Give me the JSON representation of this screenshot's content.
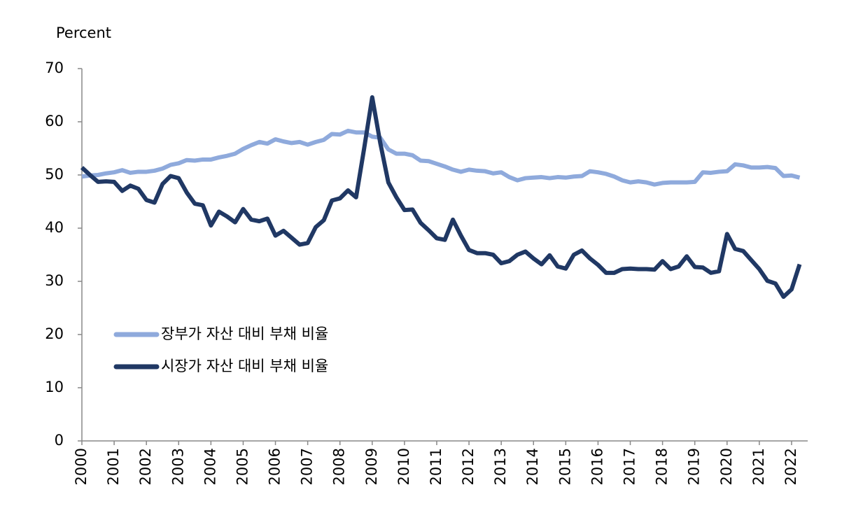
{
  "chart_data": {
    "type": "line",
    "y_axis_label": "Percent",
    "x": [
      2000,
      2000.25,
      2000.5,
      2000.75,
      2001,
      2001.25,
      2001.5,
      2001.75,
      2002,
      2002.25,
      2002.5,
      2002.75,
      2003,
      2003.25,
      2003.5,
      2003.75,
      2004,
      2004.25,
      2004.5,
      2004.75,
      2005,
      2005.25,
      2005.5,
      2005.75,
      2006,
      2006.25,
      2006.5,
      2006.75,
      2007,
      2007.25,
      2007.5,
      2007.75,
      2008,
      2008.25,
      2008.5,
      2008.75,
      2009,
      2009.25,
      2009.5,
      2009.75,
      2010,
      2010.25,
      2010.5,
      2010.75,
      2011,
      2011.25,
      2011.5,
      2011.75,
      2012,
      2012.25,
      2012.5,
      2012.75,
      2013,
      2013.25,
      2013.5,
      2013.75,
      2014,
      2014.25,
      2014.5,
      2014.75,
      2015,
      2015.25,
      2015.5,
      2015.75,
      2016,
      2016.25,
      2016.5,
      2016.75,
      2017,
      2017.25,
      2017.5,
      2017.75,
      2018,
      2018.25,
      2018.5,
      2018.75,
      2019,
      2019.25,
      2019.5,
      2019.75,
      2020,
      2020.25,
      2020.5,
      2020.75,
      2021,
      2021.25,
      2021.5,
      2021.75,
      2022,
      2022.25
    ],
    "series": [
      {
        "name": "장부가 자산 대비 부채 비율",
        "color": "#8faadc",
        "values": [
          49.7,
          49.9,
          50.0,
          50.3,
          50.5,
          50.9,
          50.4,
          50.6,
          50.6,
          50.8,
          51.2,
          51.9,
          52.2,
          52.8,
          52.7,
          52.9,
          52.9,
          53.3,
          53.6,
          54.0,
          54.9,
          55.6,
          56.2,
          55.9,
          56.7,
          56.3,
          56.0,
          56.2,
          55.7,
          56.2,
          56.6,
          57.7,
          57.6,
          58.3,
          58.0,
          58.0,
          57.2,
          57.0,
          54.8,
          54.0,
          54.0,
          53.7,
          52.7,
          52.6,
          52.1,
          51.6,
          51.0,
          50.6,
          51.0,
          50.8,
          50.7,
          50.3,
          50.5,
          49.6,
          49.0,
          49.4,
          49.5,
          49.6,
          49.4,
          49.6,
          49.5,
          49.7,
          49.8,
          50.7,
          50.5,
          50.2,
          49.7,
          49.0,
          48.6,
          48.8,
          48.6,
          48.2,
          48.5,
          48.6,
          48.6,
          48.6,
          48.7,
          50.5,
          50.4,
          50.6,
          50.7,
          52.0,
          51.8,
          51.4,
          51.4,
          51.5,
          51.3,
          49.8,
          49.9,
          49.5
        ]
      },
      {
        "name": "시장가 자산 대비 부채 비율",
        "color": "#203864",
        "values": [
          51.4,
          50.0,
          48.7,
          48.8,
          48.7,
          47.0,
          48.0,
          47.4,
          45.3,
          44.8,
          48.3,
          49.8,
          49.4,
          46.7,
          44.6,
          44.3,
          40.5,
          43.1,
          42.2,
          41.1,
          43.6,
          41.6,
          41.3,
          41.8,
          38.6,
          39.5,
          38.2,
          36.9,
          37.2,
          40.2,
          41.5,
          45.2,
          45.6,
          47.1,
          45.8,
          55.0,
          64.6,
          56.0,
          48.6,
          45.8,
          43.4,
          43.5,
          41.0,
          39.6,
          38.1,
          37.8,
          41.6,
          38.6,
          35.9,
          35.3,
          35.3,
          35.0,
          33.4,
          33.8,
          35.0,
          35.6,
          34.3,
          33.2,
          34.9,
          32.8,
          32.4,
          35.0,
          35.8,
          34.3,
          33.1,
          31.6,
          31.6,
          32.3,
          32.4,
          32.3,
          32.3,
          32.2,
          33.8,
          32.3,
          32.8,
          34.7,
          32.7,
          32.6,
          31.6,
          31.9,
          38.9,
          36.1,
          35.7,
          34.0,
          32.3,
          30.1,
          29.6,
          27.1,
          28.5,
          33.2
        ]
      }
    ],
    "xlim": [
      2000,
      2022.5
    ],
    "xticks": [
      2000,
      2001,
      2002,
      2003,
      2004,
      2005,
      2006,
      2007,
      2008,
      2009,
      2010,
      2011,
      2012,
      2013,
      2014,
      2015,
      2016,
      2017,
      2018,
      2019,
      2020,
      2021,
      2022
    ],
    "ylim": [
      0,
      70
    ],
    "yticks": [
      0,
      10,
      20,
      30,
      40,
      50,
      60,
      70
    ],
    "grid": false,
    "legend": "lower left"
  }
}
